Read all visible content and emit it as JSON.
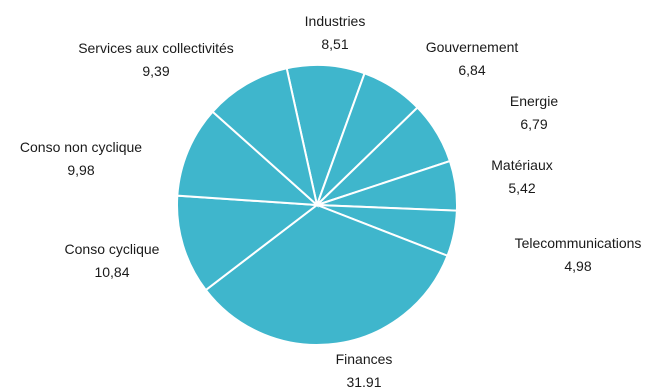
{
  "chart_data": {
    "type": "pie",
    "title": "",
    "color": "#3fb6cc",
    "slices": [
      {
        "label": "Industries",
        "value": 8.51,
        "value_text": "8,51"
      },
      {
        "label": "Gouvernement",
        "value": 6.84,
        "value_text": "6,84"
      },
      {
        "label": "Energie",
        "value": 6.79,
        "value_text": "6,79"
      },
      {
        "label": "Matériaux",
        "value": 5.42,
        "value_text": "5,42"
      },
      {
        "label": "Telecommunications",
        "value": 4.98,
        "value_text": "4,98"
      },
      {
        "label": "Finances",
        "value": 31.91,
        "value_text": "31,91"
      },
      {
        "label": "Conso cyclique",
        "value": 10.84,
        "value_text": "10,84"
      },
      {
        "label": "Conso non cyclique",
        "value": 9.98,
        "value_text": "9,98"
      },
      {
        "label": "Services aux collectivités",
        "value": 9.39,
        "value_text": "9,39"
      }
    ]
  }
}
